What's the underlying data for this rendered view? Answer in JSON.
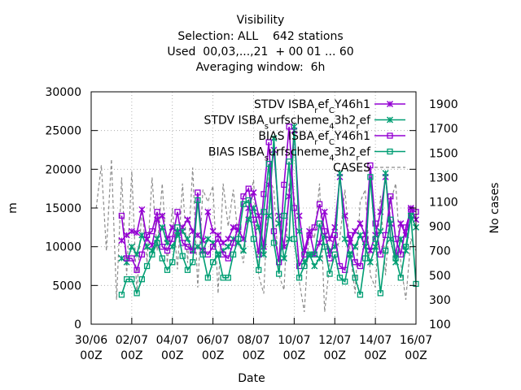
{
  "chart_data": {
    "type": "line",
    "title_lines": [
      "Visibility",
      "Selection: ALL    642 stations",
      "Used  00,03,...,21  + 00 01 ... 60",
      "Averaging window:  6h"
    ],
    "xlabel": "Date",
    "ylabel": "m",
    "y2label": "No cases",
    "x_ticks": [
      {
        "line1": "30/06",
        "line2": "00Z"
      },
      {
        "line1": "02/07",
        "line2": "00Z"
      },
      {
        "line1": "04/07",
        "line2": "00Z"
      },
      {
        "line1": "06/07",
        "line2": "00Z"
      },
      {
        "line1": "08/07",
        "line2": "00Z"
      },
      {
        "line1": "10/07",
        "line2": "00Z"
      },
      {
        "line1": "12/07",
        "line2": "00Z"
      },
      {
        "line1": "14/07",
        "line2": "00Z"
      },
      {
        "line1": "16/07",
        "line2": "00Z"
      }
    ],
    "xlim_days": [
      0,
      16
    ],
    "ylim": [
      0,
      30000
    ],
    "y_ticks": [
      0,
      5000,
      10000,
      15000,
      20000,
      25000,
      30000
    ],
    "y2lim": [
      100,
      2000
    ],
    "y2_ticks": [
      100,
      300,
      500,
      700,
      900,
      1100,
      1300,
      1500,
      1700,
      1900
    ],
    "grid": true,
    "legend_position": "top-right",
    "series": [
      {
        "name": "STDV ISBA_ref_CY46h1",
        "color": "#9400d3",
        "marker": "x",
        "dash": "",
        "axis": "y1",
        "x": [
          1.5,
          1.75,
          2.0,
          2.25,
          2.5,
          2.75,
          3.0,
          3.25,
          3.5,
          3.75,
          4.0,
          4.25,
          4.5,
          4.75,
          5.0,
          5.25,
          5.5,
          5.75,
          6.0,
          6.25,
          6.5,
          6.75,
          7.0,
          7.25,
          7.5,
          7.75,
          8.0,
          8.25,
          8.5,
          8.75,
          9.0,
          9.25,
          9.5,
          9.75,
          10.0,
          10.25,
          10.5,
          10.75,
          11.0,
          11.25,
          11.5,
          11.75,
          12.0,
          12.25,
          12.5,
          12.75,
          13.0,
          13.25,
          13.5,
          13.75,
          14.0,
          14.25,
          14.5,
          14.75,
          15.0,
          15.25,
          15.5,
          15.75,
          16.0
        ],
        "y": [
          10800,
          11500,
          12000,
          11800,
          14800,
          11000,
          10200,
          13500,
          14000,
          11000,
          12500,
          11800,
          12500,
          13500,
          12000,
          11500,
          10800,
          14500,
          12000,
          11500,
          10500,
          11000,
          12500,
          12200,
          11000,
          15000,
          17000,
          14000,
          10000,
          18000,
          22500,
          14000,
          10000,
          16500,
          25000,
          14000,
          9500,
          12000,
          9000,
          10500,
          14500,
          11000,
          12500,
          19000,
          14000,
          10500,
          12000,
          13000,
          11500,
          9500,
          11500,
          14500,
          19000,
          13000,
          9000,
          13000,
          11500,
          15000,
          13500
        ]
      },
      {
        "name": "STDV ISBA_surfscheme_43h2_ref",
        "color": "#009e73",
        "marker": "x",
        "dash": "",
        "axis": "y1",
        "x": [
          1.5,
          1.75,
          2.0,
          2.25,
          2.5,
          2.75,
          3.0,
          3.25,
          3.5,
          3.75,
          4.0,
          4.25,
          4.5,
          4.75,
          5.0,
          5.25,
          5.5,
          5.75,
          6.0,
          6.25,
          6.5,
          6.75,
          7.0,
          7.25,
          7.5,
          7.75,
          8.0,
          8.25,
          8.5,
          8.75,
          9.0,
          9.25,
          9.5,
          9.75,
          10.0,
          10.25,
          10.5,
          10.75,
          11.0,
          11.25,
          11.5,
          11.75,
          12.0,
          12.25,
          12.5,
          12.75,
          13.0,
          13.25,
          13.5,
          13.75,
          14.0,
          14.25,
          14.5,
          14.75,
          15.0,
          15.25,
          15.5,
          15.75,
          16.0
        ],
        "y": [
          8500,
          8000,
          10000,
          9000,
          11500,
          10000,
          9500,
          11000,
          12500,
          10500,
          10000,
          11500,
          12000,
          11000,
          9500,
          10000,
          9500,
          11000,
          10500,
          9000,
          9500,
          10000,
          11000,
          10500,
          9500,
          13500,
          15000,
          12500,
          9000,
          14000,
          24000,
          13000,
          8500,
          11000,
          25500,
          12000,
          8000,
          9000,
          7500,
          8500,
          11500,
          9500,
          10000,
          19500,
          11000,
          9000,
          10000,
          11500,
          10000,
          8000,
          10000,
          12000,
          19500,
          11000,
          8000,
          11000,
          9500,
          14000,
          12500
        ]
      },
      {
        "name": "BIAS ISBA_ref_CY46h1",
        "color": "#9400d3",
        "marker": "square",
        "dash": "",
        "axis": "y1",
        "x": [
          1.5,
          1.75,
          2.0,
          2.25,
          2.5,
          2.75,
          3.0,
          3.25,
          3.5,
          3.75,
          4.0,
          4.25,
          4.5,
          4.75,
          5.0,
          5.25,
          5.5,
          5.75,
          6.0,
          6.25,
          6.5,
          6.75,
          7.0,
          7.25,
          7.5,
          7.75,
          8.0,
          8.25,
          8.5,
          8.75,
          9.0,
          9.25,
          9.5,
          9.75,
          10.0,
          10.25,
          10.5,
          10.75,
          11.0,
          11.25,
          11.5,
          11.75,
          12.0,
          12.25,
          12.5,
          12.75,
          13.0,
          13.25,
          13.5,
          13.75,
          14.0,
          14.25,
          14.5,
          14.75,
          15.0,
          15.25,
          15.5,
          15.75,
          16.0
        ],
        "y": [
          14000,
          8500,
          8500,
          7000,
          9000,
          11500,
          12000,
          14500,
          10000,
          9500,
          11000,
          14500,
          10500,
          10000,
          9500,
          17000,
          9500,
          9000,
          10000,
          11000,
          9000,
          8500,
          10500,
          12500,
          16500,
          17500,
          13500,
          9000,
          16800,
          23500,
          12000,
          8000,
          18000,
          25500,
          15000,
          7500,
          9000,
          11500,
          12500,
          15500,
          12000,
          8500,
          11500,
          7500,
          7000,
          11500,
          8000,
          7500,
          11000,
          20500,
          13000,
          9000,
          11500,
          16500,
          11000,
          9000,
          12500,
          14800,
          14500
        ]
      },
      {
        "name": "BIAS ISBA_surfscheme_43h2_ref",
        "color": "#009e73",
        "marker": "square",
        "dash": "",
        "axis": "y1",
        "x": [
          1.5,
          1.75,
          2.0,
          2.25,
          2.5,
          2.75,
          3.0,
          3.25,
          3.5,
          3.75,
          4.0,
          4.25,
          4.5,
          4.75,
          5.0,
          5.25,
          5.5,
          5.75,
          6.0,
          6.25,
          6.5,
          6.75,
          7.0,
          7.25,
          7.5,
          7.75,
          8.0,
          8.25,
          8.5,
          8.75,
          9.0,
          9.25,
          9.5,
          9.75,
          10.0,
          10.25,
          10.5,
          10.75,
          11.0,
          11.25,
          11.5,
          11.75,
          12.0,
          12.25,
          12.5,
          12.75,
          13.0,
          13.25,
          13.5,
          13.75,
          14.0,
          14.25,
          14.5,
          14.75,
          15.0,
          15.25,
          15.5,
          15.75,
          16.0
        ],
        "y": [
          3800,
          5800,
          5800,
          4000,
          5800,
          7500,
          9000,
          10500,
          8500,
          7000,
          8000,
          12500,
          8800,
          7000,
          8000,
          16000,
          9000,
          6000,
          8000,
          9000,
          6000,
          6000,
          9000,
          11000,
          15500,
          16000,
          11000,
          7000,
          14500,
          20700,
          10500,
          6500,
          14000,
          21000,
          11000,
          6000,
          7500,
          9000,
          9000,
          13000,
          10000,
          6500,
          9000,
          6000,
          5500,
          9000,
          6000,
          3800,
          8500,
          19000,
          11000,
          4000,
          9500,
          13500,
          8500,
          6000,
          10000,
          14000,
          5200
        ]
      }
    ],
    "cases_series": {
      "name": "CASES",
      "color": "#8c8c8c",
      "dash": "4,3",
      "axis": "y2",
      "x": [
        0.25,
        0.5,
        0.75,
        1.0,
        1.25,
        1.5,
        1.75,
        2.0,
        2.25,
        2.5,
        2.75,
        3.0,
        3.25,
        3.5,
        3.75,
        4.0,
        4.25,
        4.5,
        4.75,
        5.0,
        5.25,
        5.5,
        5.75,
        6.0,
        6.25,
        6.5,
        6.75,
        7.0,
        7.25,
        7.5,
        7.75,
        8.0,
        8.25,
        8.5,
        8.75,
        9.0,
        9.25,
        9.5,
        9.75,
        10.0,
        10.25,
        10.5,
        10.75,
        11.0,
        11.25,
        11.5,
        11.75,
        12.0,
        12.25,
        12.5,
        12.75,
        13.0,
        13.25,
        13.5,
        13.75,
        14.0,
        14.25,
        14.5,
        14.75,
        15.0,
        15.25,
        15.5,
        15.75,
        16.0
      ],
      "y": [
        1050,
        1400,
        700,
        1450,
        300,
        1300,
        500,
        1350,
        350,
        1050,
        600,
        1300,
        700,
        1250,
        600,
        1050,
        550,
        1250,
        600,
        1380,
        400,
        1200,
        1100,
        1230,
        350,
        1250,
        900,
        1200,
        800,
        600,
        1050,
        1280,
        500,
        350,
        1300,
        1200,
        500,
        380,
        1250,
        1150,
        450,
        200,
        900,
        800,
        1250,
        200,
        600,
        650,
        800,
        1200,
        700,
        350,
        1100,
        1200,
        500,
        400,
        1150,
        500,
        1100,
        1250,
        600,
        300,
        800,
        700
      ]
    }
  }
}
